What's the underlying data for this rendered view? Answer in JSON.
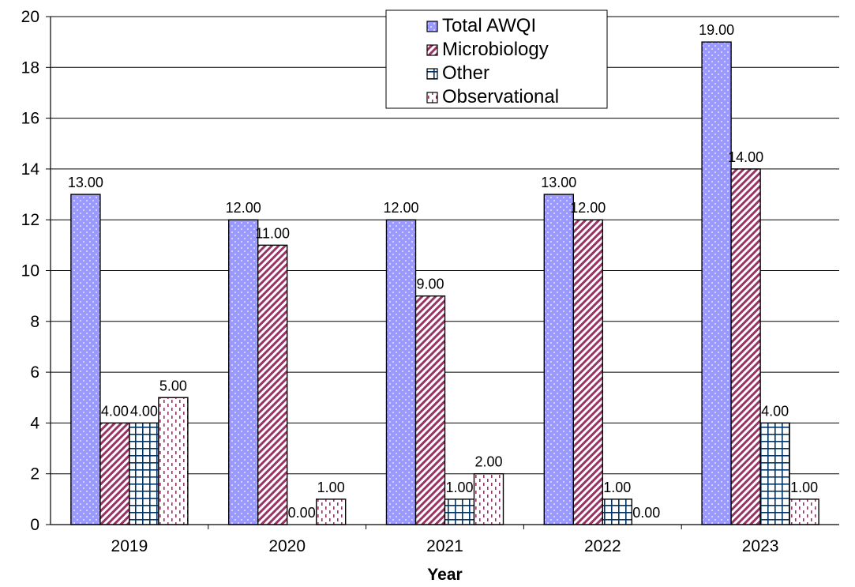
{
  "chart_data": {
    "type": "bar",
    "title": "",
    "xlabel": "Year",
    "ylabel": "",
    "ylim": [
      0,
      20
    ],
    "yticks": [
      "0",
      "2",
      "4",
      "6",
      "8",
      "10",
      "12",
      "14",
      "16",
      "18",
      "20"
    ],
    "grid": true,
    "legend_position": "top-center",
    "categories": [
      "2019",
      "2020",
      "2021",
      "2022",
      "2023"
    ],
    "series": [
      {
        "name": "Total AWQI",
        "values": [
          13,
          12,
          12,
          13,
          19
        ],
        "labels": [
          "13.00",
          "12.00",
          "12.00",
          "13.00",
          "19.00"
        ],
        "pattern": "dots",
        "color": "#9999ff"
      },
      {
        "name": "Microbiology",
        "values": [
          4,
          11,
          9,
          12,
          14
        ],
        "labels": [
          "4.00",
          "11.00",
          "9.00",
          "12.00",
          "14.00"
        ],
        "pattern": "diagonal",
        "color": "#993366"
      },
      {
        "name": "Other",
        "values": [
          4,
          0,
          1,
          1,
          4
        ],
        "labels": [
          "4.00",
          "0.00",
          "1.00",
          "1.00",
          "4.00"
        ],
        "pattern": "grid",
        "color": "#003366"
      },
      {
        "name": "Observational",
        "values": [
          5,
          1,
          2,
          0,
          1
        ],
        "labels": [
          "5.00",
          "1.00",
          "2.00",
          "0.00",
          "1.00"
        ],
        "pattern": "dashes",
        "color": "#993366"
      }
    ]
  }
}
